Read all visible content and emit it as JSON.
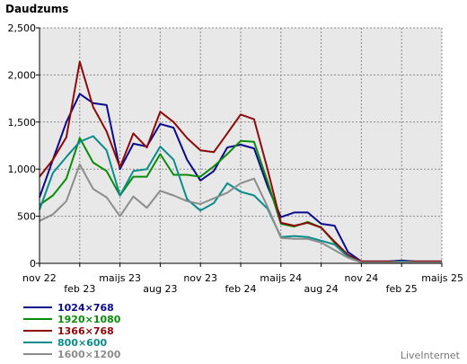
{
  "chart_data": {
    "type": "line",
    "title": "Daudzums",
    "xlabel": "",
    "ylabel": "",
    "ylim": [
      0,
      2500
    ],
    "yticks": [
      "0",
      "500",
      "1,000",
      "1,500",
      "2,000",
      "2,500"
    ],
    "grid": true,
    "legend_position": "bottom-left",
    "x_ticks": [
      {
        "label": "nov 22",
        "index": 0
      },
      {
        "label": "feb 23",
        "index": 3
      },
      {
        "label": "maijs 23",
        "index": 6
      },
      {
        "label": "aug 23",
        "index": 9
      },
      {
        "label": "nov 23",
        "index": 12
      },
      {
        "label": "feb 24",
        "index": 15
      },
      {
        "label": "maijs 24",
        "index": 18
      },
      {
        "label": "aug 24",
        "index": 21
      },
      {
        "label": "nov 24",
        "index": 24
      },
      {
        "label": "feb 25",
        "index": 27
      },
      {
        "label": "maijs 25",
        "index": 30
      }
    ],
    "x_count": 31,
    "series": [
      {
        "name": "1024×768",
        "color": "#0a0a8c",
        "values": [
          700,
          1100,
          1500,
          1800,
          1700,
          1680,
          1000,
          1270,
          1240,
          1480,
          1440,
          1100,
          880,
          980,
          1230,
          1260,
          1220,
          820,
          490,
          540,
          540,
          420,
          400,
          120,
          20,
          20,
          20,
          30,
          20,
          20,
          20
        ]
      },
      {
        "name": "1920×1080",
        "color": "#0a8c0a",
        "values": [
          620,
          720,
          900,
          1330,
          1070,
          980,
          720,
          920,
          920,
          1160,
          940,
          940,
          920,
          1030,
          1160,
          1300,
          1290,
          870,
          420,
          390,
          440,
          380,
          220,
          80,
          10,
          10,
          10,
          20,
          10,
          10,
          10
        ]
      },
      {
        "name": "1366×768",
        "color": "#8c0a0a",
        "values": [
          920,
          1100,
          1340,
          2140,
          1660,
          1400,
          1020,
          1380,
          1230,
          1610,
          1500,
          1330,
          1200,
          1180,
          1380,
          1580,
          1530,
          1000,
          430,
          400,
          430,
          380,
          230,
          90,
          20,
          20,
          20,
          20,
          20,
          20,
          20
        ]
      },
      {
        "name": "800×600",
        "color": "#0a8c8c",
        "values": [
          570,
          960,
          1130,
          1290,
          1350,
          1200,
          720,
          980,
          1000,
          1240,
          1100,
          680,
          560,
          640,
          850,
          760,
          720,
          580,
          280,
          290,
          280,
          240,
          200,
          70,
          10,
          10,
          10,
          20,
          10,
          10,
          10
        ]
      },
      {
        "name": "1600×1200",
        "color": "#8c8c8c",
        "values": [
          450,
          520,
          660,
          1050,
          790,
          700,
          500,
          710,
          590,
          770,
          720,
          660,
          630,
          690,
          750,
          850,
          900,
          600,
          270,
          260,
          260,
          220,
          140,
          60,
          10,
          10,
          10,
          10,
          10,
          10,
          10
        ]
      }
    ]
  },
  "watermark": "LiveInternet"
}
